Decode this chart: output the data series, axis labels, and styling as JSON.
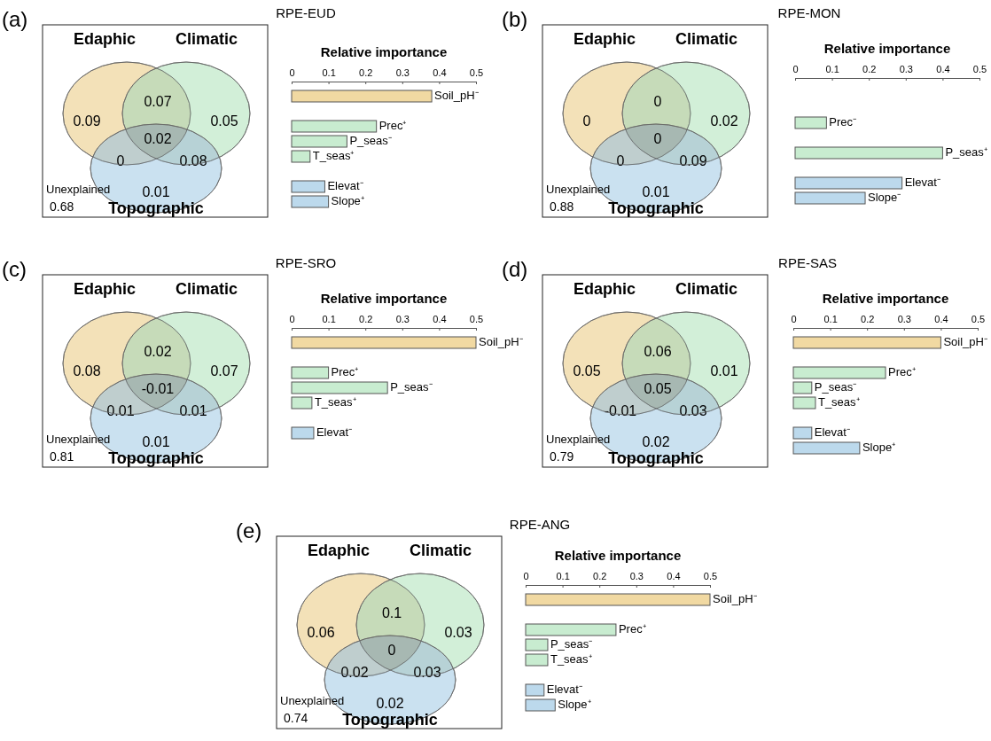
{
  "chart_data": [
    {
      "type": "other",
      "data_labels": true,
      "categories": [
        "Edaphic",
        "Climatic",
        "Topographic"
      ],
      "colors": [
        "#eed49a",
        "#bfe8c8",
        "#b4d4ea"
      ],
      "values": [
        0.09,
        0.05,
        0.01
      ],
      "annotations": [
        "(a)",
        "Unexplained",
        "0.68",
        "0.07",
        "0",
        "0.08",
        "0.02"
      ]
    },
    {
      "type": "bar",
      "title": "RPE-EUD",
      "orientation": "horizontal",
      "xlabel": "Relative importance",
      "xlim": [
        0,
        0.5
      ],
      "xticks": [
        0,
        0.1,
        0.2,
        0.3,
        0.4,
        0.5
      ],
      "categories": [
        "Soil_pH⁻",
        null,
        "Prec⁺",
        "P_seas⁻",
        "T_seas⁺",
        null,
        "Elevat⁻",
        "Slope⁺"
      ],
      "values": [
        0.38,
        null,
        0.23,
        0.15,
        0.05,
        null,
        0.09,
        0.1
      ],
      "colors": [
        "#f1d9a2",
        null,
        "#c8ecd0",
        "#c8ecd0",
        "#c8ecd0",
        null,
        "#bcd9ec",
        "#bcd9ec"
      ]
    },
    {
      "type": "other",
      "data_labels": true,
      "categories": [
        "Edaphic",
        "Climatic",
        "Topographic"
      ],
      "colors": [
        "#eed49a",
        "#bfe8c8",
        "#b4d4ea"
      ],
      "values": [
        0,
        0.02,
        0.01
      ],
      "annotations": [
        "(b)",
        "Unexplained",
        "0.88",
        "0",
        "0",
        "0.09",
        "0"
      ]
    },
    {
      "type": "bar",
      "title": "RPE-MON",
      "orientation": "horizontal",
      "xlabel": "Relative importance",
      "xlim": [
        0,
        0.5
      ],
      "xticks": [
        0,
        0.1,
        0.2,
        0.3,
        0.4,
        0.5
      ],
      "categories": [
        null,
        null,
        "Prec⁻",
        null,
        "P_seas⁺",
        null,
        "Elevat⁻",
        "Slope⁻"
      ],
      "values": [
        null,
        null,
        0.085,
        null,
        0.4,
        null,
        0.29,
        0.19
      ],
      "colors": [
        null,
        null,
        "#c8ecd0",
        null,
        "#c8ecd0",
        null,
        "#bcd9ec",
        "#bcd9ec"
      ]
    },
    {
      "type": "other",
      "data_labels": true,
      "categories": [
        "Edaphic",
        "Climatic",
        "Topographic"
      ],
      "colors": [
        "#eed49a",
        "#bfe8c8",
        "#b4d4ea"
      ],
      "values": [
        0.08,
        0.07,
        0.01
      ],
      "annotations": [
        "(c)",
        "Unexplained",
        "0.81",
        "0.02",
        "0.01",
        "0.01",
        "-0.01"
      ]
    },
    {
      "type": "bar",
      "title": "RPE-SRO",
      "orientation": "horizontal",
      "xlabel": "Relative importance",
      "xlim": [
        0,
        0.5
      ],
      "xticks": [
        0,
        0.1,
        0.2,
        0.3,
        0.4,
        0.5
      ],
      "categories": [
        "Soil_pH⁻",
        null,
        "Prec⁺",
        "P_seas⁻",
        "T_seas⁺",
        null,
        "Elevat⁻"
      ],
      "values": [
        0.5,
        null,
        0.1,
        0.26,
        0.055,
        null,
        0.06
      ],
      "colors": [
        "#f1d9a2",
        null,
        "#c8ecd0",
        "#c8ecd0",
        "#c8ecd0",
        null,
        "#bcd9ec"
      ]
    },
    {
      "type": "other",
      "data_labels": true,
      "categories": [
        "Edaphic",
        "Climatic",
        "Topographic"
      ],
      "colors": [
        "#eed49a",
        "#bfe8c8",
        "#b4d4ea"
      ],
      "values": [
        0.05,
        0.01,
        0.02
      ],
      "annotations": [
        "(d)",
        "Unexplained",
        "0.79",
        "0.06",
        "-0.01",
        "0.03",
        "0.05"
      ]
    },
    {
      "type": "bar",
      "title": "RPE-SAS",
      "orientation": "horizontal",
      "xlabel": "Relative importance",
      "xlim": [
        0,
        0.5
      ],
      "xticks": [
        0,
        0.1,
        0.2,
        0.3,
        0.4,
        0.5
      ],
      "categories": [
        "Soil_pH⁻",
        null,
        "Prec⁺",
        "P_seas⁻",
        "T_seas⁺",
        null,
        "Elevat⁻",
        "Slope⁺"
      ],
      "values": [
        0.4,
        null,
        0.25,
        0.05,
        0.06,
        null,
        0.05,
        0.18
      ],
      "colors": [
        "#f1d9a2",
        null,
        "#c8ecd0",
        "#c8ecd0",
        "#c8ecd0",
        null,
        "#bcd9ec",
        "#bcd9ec"
      ]
    },
    {
      "type": "other",
      "data_labels": true,
      "categories": [
        "Edaphic",
        "Climatic",
        "Topographic"
      ],
      "colors": [
        "#eed49a",
        "#bfe8c8",
        "#b4d4ea"
      ],
      "values": [
        0.06,
        0.03,
        0.02
      ],
      "annotations": [
        "(e)",
        "Unexplained",
        "0.74",
        "0.1",
        "0.02",
        "0.03",
        "0"
      ]
    },
    {
      "type": "bar",
      "title": "RPE-ANG",
      "orientation": "horizontal",
      "xlabel": "Relative importance",
      "xlim": [
        0,
        0.5
      ],
      "xticks": [
        0,
        0.1,
        0.2,
        0.3,
        0.4,
        0.5
      ],
      "categories": [
        "Soil_pH⁻",
        null,
        "Prec⁺",
        "P_seas⁻",
        "T_seas⁺",
        null,
        "Elevat⁻",
        "Slope⁺"
      ],
      "values": [
        0.5,
        null,
        0.245,
        0.06,
        0.06,
        null,
        0.05,
        0.08
      ],
      "colors": [
        "#f1d9a2",
        null,
        "#c8ecd0",
        "#c8ecd0",
        "#c8ecd0",
        null,
        "#bcd9ec",
        "#bcd9ec"
      ]
    }
  ]
}
